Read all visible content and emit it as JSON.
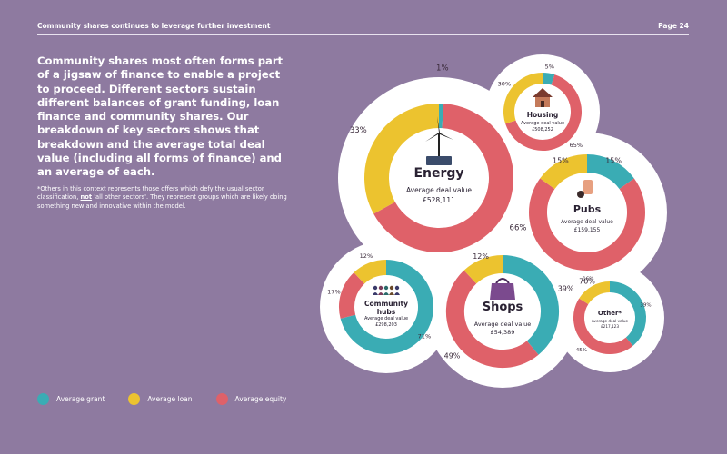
{
  "header": {
    "title": "Community shares continues to leverage further investment",
    "page": "Page 24"
  },
  "intro": "Community shares most often forms part of a jigsaw of finance to enable a project to proceed. Different sectors sustain different balances of grant funding, loan finance and community shares. Our breakdown of key sectors shows that breakdown and the average total deal value (including all forms of finance) and an average of each.",
  "note": {
    "part1": "*Others in this context represents those offers which defy the usual sector classification, ",
    "emphasis": "not",
    "part2": " 'all other sectors'. They represent groups which are likely doing something new and innovative within the model."
  },
  "colors": {
    "grant": "#3aacb4",
    "loan": "#ecc32f",
    "equity": "#df6169",
    "bubble": "#ffffff",
    "background": "#8e7aa0"
  },
  "legend": [
    {
      "label": "Average grant",
      "color": "#3aacb4"
    },
    {
      "label": "Average loan",
      "color": "#ecc32f"
    },
    {
      "label": "Average equity",
      "color": "#df6169"
    }
  ],
  "chart_data": [
    {
      "type": "pie",
      "name": "Energy",
      "icon": "wind-turbine-icon",
      "deal_label": "Average deal value",
      "deal_value": "£528,111",
      "slices": [
        {
          "series": "Average grant",
          "value": 1,
          "label": "1%"
        },
        {
          "series": "Average equity",
          "value": 66,
          "label": "66%"
        },
        {
          "series": "Average loan",
          "value": 33,
          "label": "33%"
        }
      ]
    },
    {
      "type": "pie",
      "name": "Housing",
      "icon": "house-icon",
      "deal_label": "Average deal value",
      "deal_value": "£508,252",
      "slices": [
        {
          "series": "Average grant",
          "value": 5,
          "label": "5%"
        },
        {
          "series": "Average equity",
          "value": 65,
          "label": "65%"
        },
        {
          "series": "Average loan",
          "value": 30,
          "label": "30%"
        }
      ]
    },
    {
      "type": "pie",
      "name": "Pubs",
      "icon": "beer-glass-icon",
      "deal_label": "Average deal value",
      "deal_value": "£159,155",
      "slices": [
        {
          "series": "Average grant",
          "value": 15,
          "label": "15%"
        },
        {
          "series": "Average equity",
          "value": 70,
          "label": "70%"
        },
        {
          "series": "Average loan",
          "value": 15,
          "label": "15%"
        }
      ]
    },
    {
      "type": "pie",
      "name": "Community hubs",
      "icon": "people-icon",
      "deal_label": "Average deal value",
      "deal_value": "£298,203",
      "slices": [
        {
          "series": "Average grant",
          "value": 71,
          "label": "71%"
        },
        {
          "series": "Average equity",
          "value": 17,
          "label": "17%"
        },
        {
          "series": "Average loan",
          "value": 12,
          "label": "12%"
        }
      ]
    },
    {
      "type": "pie",
      "name": "Shops",
      "icon": "shopping-bag-icon",
      "deal_label": "Average deal value",
      "deal_value": "£54,389",
      "slices": [
        {
          "series": "Average grant",
          "value": 39,
          "label": "39%"
        },
        {
          "series": "Average equity",
          "value": 49,
          "label": "49%"
        },
        {
          "series": "Average loan",
          "value": 12,
          "label": "12%"
        }
      ]
    },
    {
      "type": "pie",
      "name": "Other*",
      "icon": "",
      "deal_label": "Average deal value",
      "deal_value": "£217,123",
      "slices": [
        {
          "series": "Average grant",
          "value": 39,
          "label": "39%"
        },
        {
          "series": "Average equity",
          "value": 45,
          "label": "45%"
        },
        {
          "series": "Average loan",
          "value": 16,
          "label": "16%"
        }
      ]
    }
  ]
}
